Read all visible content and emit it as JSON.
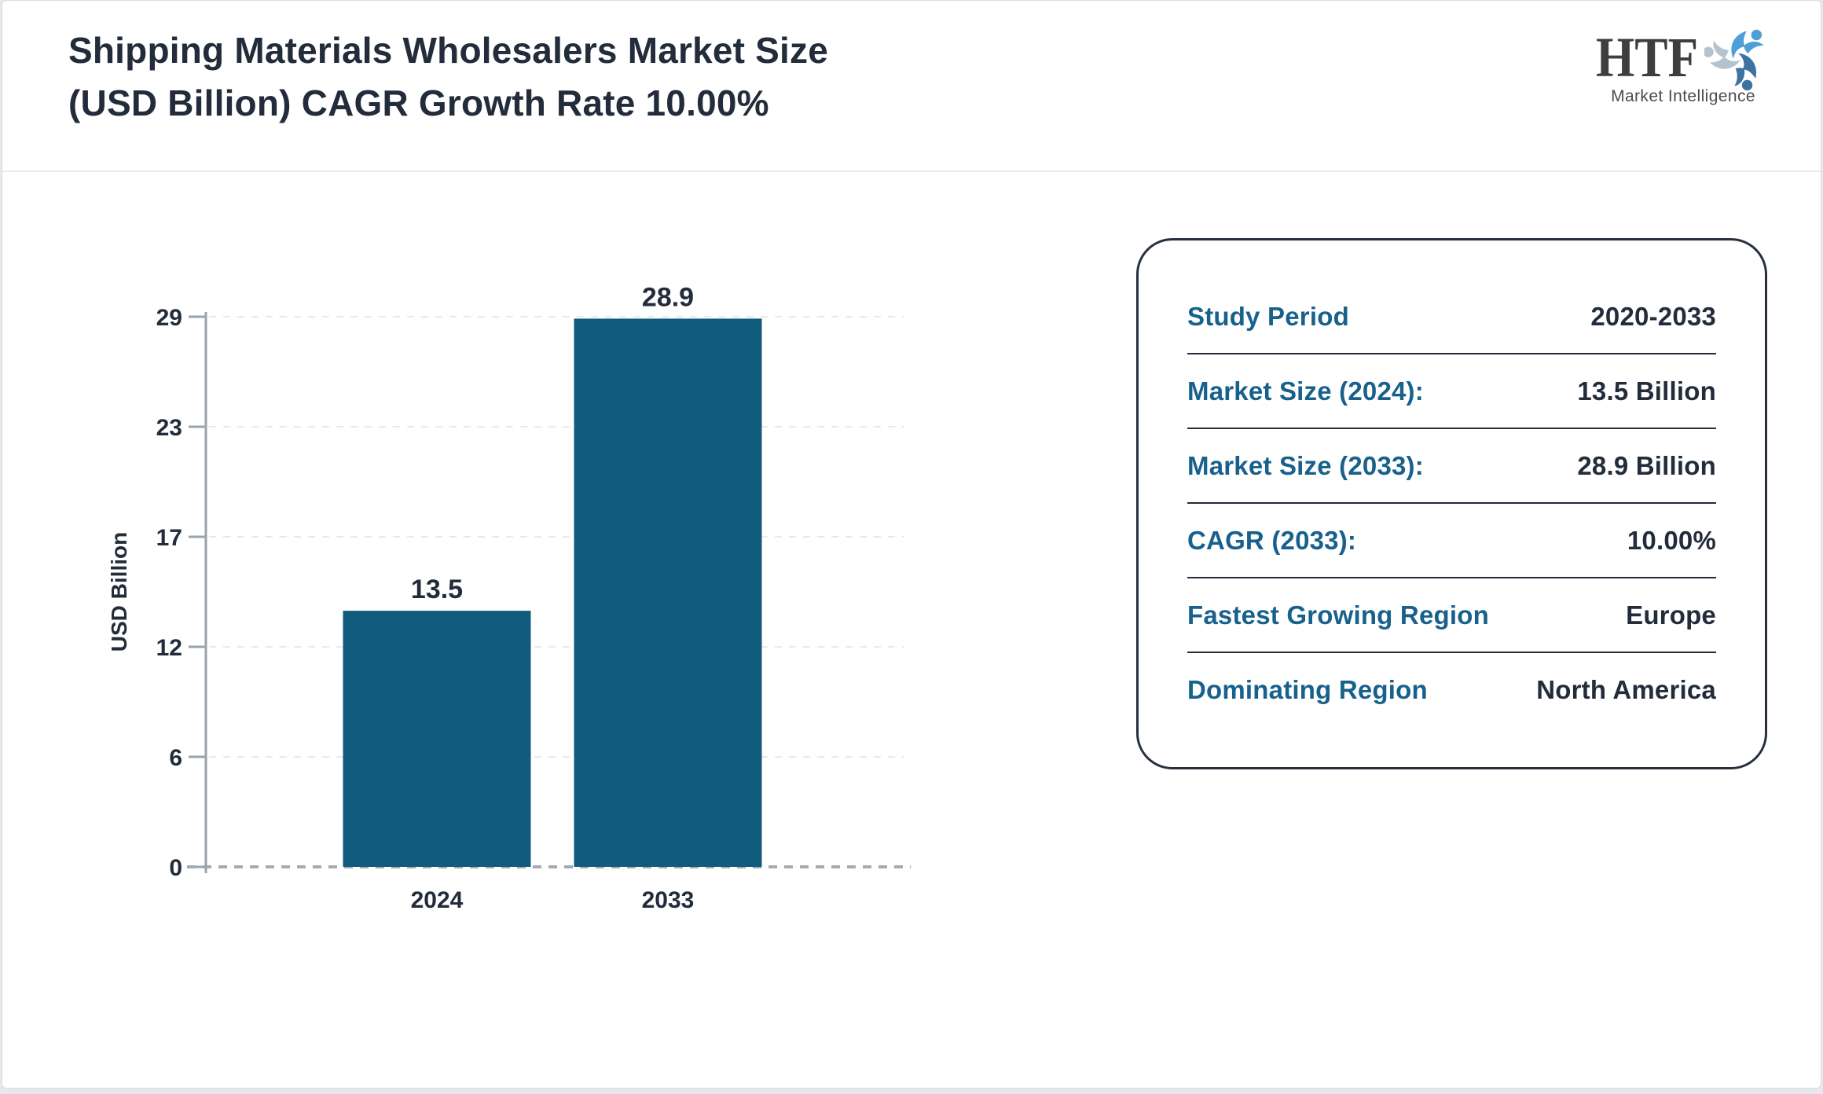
{
  "header": {
    "title": "Shipping Materials Wholesalers Market Size\n(USD Billion) CAGR Growth Rate 10.00%"
  },
  "logo": {
    "text": "HTF",
    "subtext": "Market Intelligence",
    "swirl_colors": [
      "#4d9fd6",
      "#3c73a0",
      "#b4c3cf"
    ]
  },
  "chart_data": {
    "type": "bar",
    "title": "Shipping Materials Wholesalers Market Size (USD Billion) CAGR Growth Rate 10.00%",
    "categories": [
      "2024",
      "2033"
    ],
    "values": [
      13.5,
      28.9
    ],
    "value_labels": [
      "13.5",
      "28.9"
    ],
    "xlabel": "",
    "ylabel": "USD Billion",
    "ylim": [
      0,
      29
    ],
    "yticks": [
      0,
      6,
      12,
      17,
      23,
      29
    ],
    "grid": "horizontal-dashed",
    "legend": "none",
    "bar_color": "#0f5c7e"
  },
  "info_card": {
    "rows": [
      {
        "label": "Study Period",
        "value": "2020-2033"
      },
      {
        "label": "Market Size (2024):",
        "value": "13.5 Billion"
      },
      {
        "label": "Market Size (2033):",
        "value": "28.9 Billion"
      },
      {
        "label": "CAGR (2033):",
        "value": "10.00%"
      },
      {
        "label": "Fastest Growing Region",
        "value": "Europe"
      },
      {
        "label": "Dominating Region",
        "value": "North America"
      }
    ]
  },
  "colors": {
    "text_dark": "#222c3a",
    "label_teal": "#17618c",
    "bar": "#0f5c7e",
    "axis_gray": "#9aa2ab",
    "grid_light": "#e9e9e9",
    "baseline_gray": "#a6abb3"
  }
}
